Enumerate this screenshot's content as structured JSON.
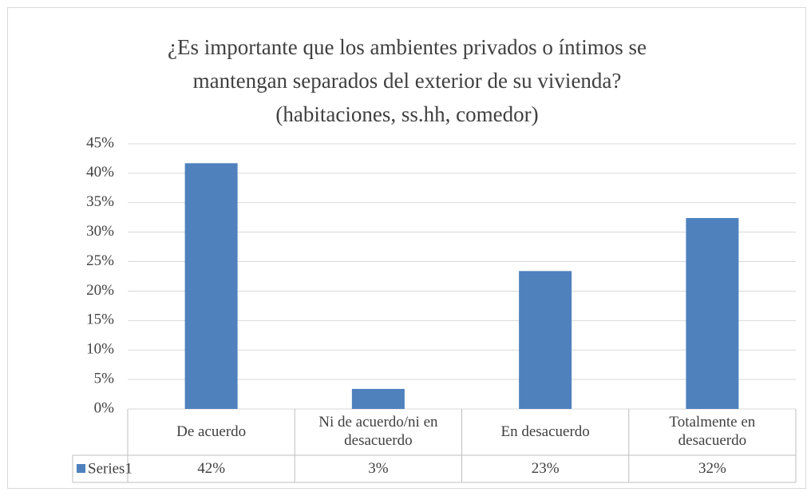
{
  "chart_data": {
    "type": "bar",
    "title": [
      "¿Es importante que los ambientes privados o íntimos se",
      "mantengan separados del exterior de su vivienda?",
      "(habitaciones, ss.hh, comedor)"
    ],
    "categories": [
      "De acuerdo",
      "Ni de acuerdo/ni en desacuerdo",
      "En desacuerdo",
      "Totalmente en desacuerdo"
    ],
    "series": [
      {
        "name": "Series1",
        "color": "#4f81bd",
        "values": [
          41.7,
          3.4,
          23.4,
          32.4
        ],
        "value_labels": [
          "42%",
          "3%",
          "23%",
          "32%"
        ]
      }
    ],
    "ylim": [
      0,
      45
    ],
    "yticks": [
      {
        "value": 0,
        "label": "0%"
      },
      {
        "value": 5,
        "label": "5%"
      },
      {
        "value": 10,
        "label": "10%"
      },
      {
        "value": 15,
        "label": "15%"
      },
      {
        "value": 20,
        "label": "20%"
      },
      {
        "value": 25,
        "label": "25%"
      },
      {
        "value": 30,
        "label": "30%"
      },
      {
        "value": 35,
        "label": "35%"
      },
      {
        "value": 40,
        "label": "40%"
      },
      {
        "value": 45,
        "label": "45%"
      }
    ],
    "grid": true
  }
}
